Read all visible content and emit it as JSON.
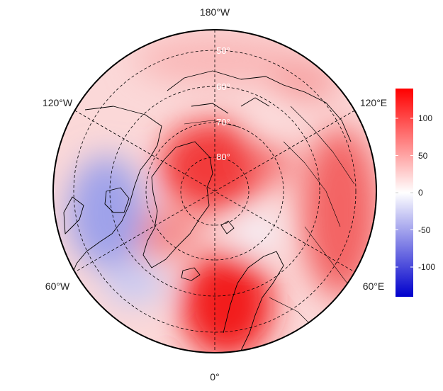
{
  "map": {
    "projection": "north-polar-stereographic",
    "longitude_labels": {
      "top": "180°W",
      "bottom": "0°",
      "upper_left": "120°W",
      "lower_left": "60°W",
      "upper_right": "120°E",
      "lower_right": "60°E"
    },
    "latitude_labels": [
      "50°",
      "60°",
      "70°",
      "80°"
    ],
    "colorbar": {
      "ticks": [
        "100",
        "50",
        "0",
        "-50",
        "-100"
      ],
      "range": [
        -135,
        135
      ],
      "colors": {
        "negative": "#0000cc",
        "zero": "#ffffff",
        "positive": "#ff0000"
      }
    }
  }
}
